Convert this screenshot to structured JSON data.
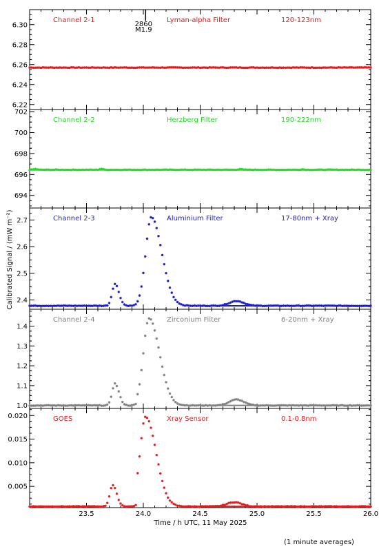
{
  "chart_data": {
    "type": "scatter",
    "x_label": "Time / h UTC, 11 May 2025",
    "y_label": "Calibrated Signal  / (mW m⁻²)",
    "x_range": [
      23.0,
      26.0
    ],
    "x_ticks": [
      "23.5",
      "24.0",
      "24.5",
      "25.0",
      "25.5",
      "26.0"
    ],
    "x_tick_values": [
      23.5,
      24.0,
      24.5,
      25.0,
      25.5,
      26.0
    ],
    "footnote": "(1 minute averages)",
    "flare_marker": {
      "x": 24.02,
      "line1": "2860",
      "line2": "M1.9"
    },
    "panels": [
      {
        "channel": "Channel 2-1",
        "filter": "Lyman-alpha Filter",
        "band": "120-123nm",
        "color": "#e41a1c",
        "ylim": [
          6.215,
          6.315
        ],
        "y_ticks": [
          "6.22",
          "6.24",
          "6.26",
          "6.28",
          "6.30"
        ],
        "y_tick_values": [
          6.22,
          6.24,
          6.26,
          6.28,
          6.3
        ],
        "series": {
          "type": "flat",
          "base": 6.257,
          "bumps": []
        }
      },
      {
        "channel": "Channel 2-2",
        "filter": "Herzberg Filter",
        "band": "190-222nm",
        "color": "#22dd22",
        "ylim": [
          692.8,
          702.2
        ],
        "y_ticks": [
          "694",
          "696",
          "698",
          "700",
          "702"
        ],
        "y_tick_values": [
          694,
          696,
          698,
          700,
          702
        ],
        "series": {
          "type": "flat",
          "base": 696.45,
          "bumps": [
            {
              "x": 23.05,
              "a": 0.08
            },
            {
              "x": 23.63,
              "a": 0.1
            },
            {
              "x": 24.85,
              "a": 0.08
            },
            {
              "x": 25.4,
              "a": 0.05
            }
          ]
        }
      },
      {
        "channel": "Channel 2-3",
        "filter": "Aluminium Filter",
        "band": "17-80nm + Xray",
        "color": "#1c1cc8",
        "ylim": [
          2.365,
          2.745
        ],
        "y_ticks": [
          "2.4",
          "2.5",
          "2.6",
          "2.7"
        ],
        "y_tick_values": [
          2.4,
          2.5,
          2.6,
          2.7
        ],
        "series": {
          "type": "flare",
          "base": 2.378,
          "peak1": {
            "x": 23.75,
            "a": 0.082
          },
          "peak2": {
            "x": 24.07,
            "a": 0.332
          },
          "dip": {
            "x": 23.95,
            "value": 2.405
          },
          "bump": {
            "x": 24.82,
            "a": 0.018
          }
        }
      },
      {
        "channel": "Channel 2-4",
        "filter": "Zirconium Filter",
        "band": "6-20nm + Xray",
        "color": "#808080",
        "ylim": [
          0.985,
          1.485
        ],
        "y_ticks": [
          "1.0",
          "1.1",
          "1.2",
          "1.3",
          "1.4"
        ],
        "y_tick_values": [
          1.0,
          1.1,
          1.2,
          1.3,
          1.4
        ],
        "series": {
          "type": "flare",
          "base": 1.0,
          "peak1": {
            "x": 23.75,
            "a": 0.11
          },
          "peak2": {
            "x": 24.05,
            "a": 0.44
          },
          "dip": {
            "x": 23.95,
            "value": 1.025
          },
          "bump": {
            "x": 24.82,
            "a": 0.03
          }
        }
      },
      {
        "channel": "GOES",
        "filter": "Xray Sensor",
        "band": "0.1-0.8nm",
        "color": "#e41a1c",
        "ylim": [
          0.0005,
          0.0215
        ],
        "y_ticks": [
          "0.005",
          "0.010",
          "0.015",
          "0.020"
        ],
        "y_tick_values": [
          0.005,
          0.01,
          0.015,
          0.02
        ],
        "series": {
          "type": "flare",
          "base": 0.00075,
          "peak1": {
            "x": 23.73,
            "a": 0.0045
          },
          "peak2": {
            "x": 24.02,
            "a": 0.019
          },
          "dip": {
            "x": 23.95,
            "value": 0.0012
          },
          "bump": {
            "x": 24.8,
            "a": 0.0009
          }
        }
      }
    ]
  }
}
